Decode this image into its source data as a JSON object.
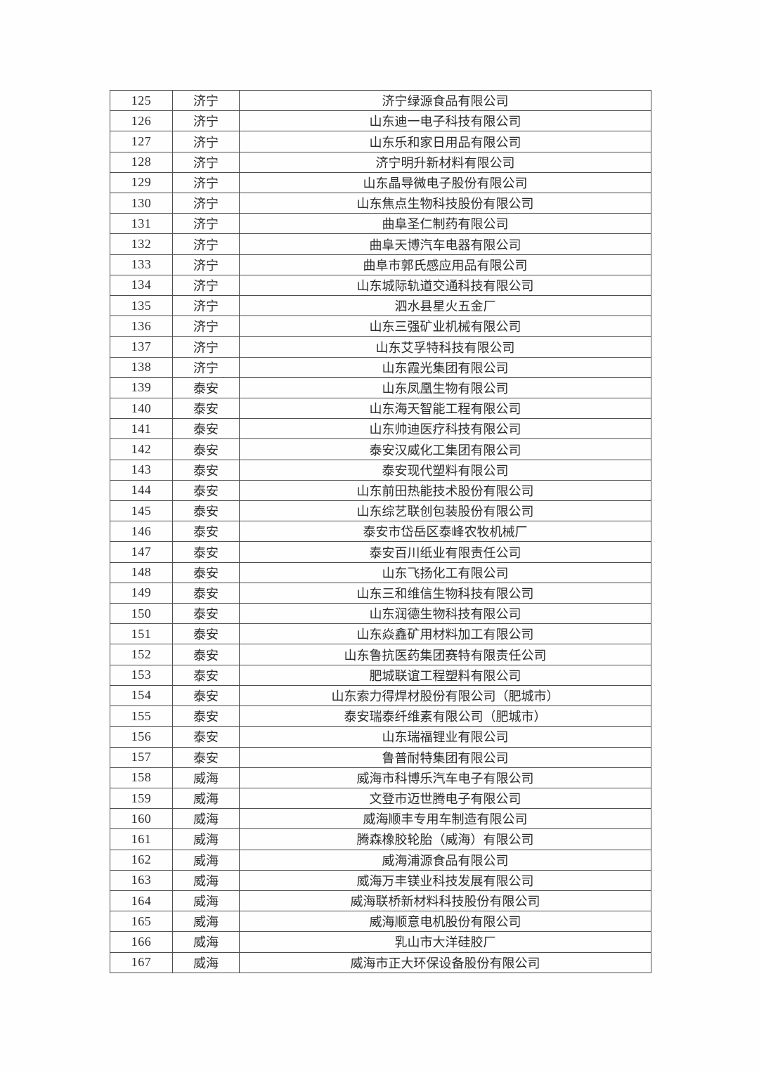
{
  "table": {
    "rows": [
      {
        "index": "125",
        "city": "济宁",
        "company": "济宁绿源食品有限公司"
      },
      {
        "index": "126",
        "city": "济宁",
        "company": "山东迪一电子科技有限公司"
      },
      {
        "index": "127",
        "city": "济宁",
        "company": "山东乐和家日用品有限公司"
      },
      {
        "index": "128",
        "city": "济宁",
        "company": "济宁明升新材料有限公司"
      },
      {
        "index": "129",
        "city": "济宁",
        "company": "山东晶导微电子股份有限公司"
      },
      {
        "index": "130",
        "city": "济宁",
        "company": "山东焦点生物科技股份有限公司"
      },
      {
        "index": "131",
        "city": "济宁",
        "company": "曲阜圣仁制药有限公司"
      },
      {
        "index": "132",
        "city": "济宁",
        "company": "曲阜天博汽车电器有限公司"
      },
      {
        "index": "133",
        "city": "济宁",
        "company": "曲阜市郭氏感应用品有限公司"
      },
      {
        "index": "134",
        "city": "济宁",
        "company": "山东城际轨道交通科技有限公司"
      },
      {
        "index": "135",
        "city": "济宁",
        "company": "泗水县星火五金厂"
      },
      {
        "index": "136",
        "city": "济宁",
        "company": "山东三强矿业机械有限公司"
      },
      {
        "index": "137",
        "city": "济宁",
        "company": "山东艾孚特科技有限公司"
      },
      {
        "index": "138",
        "city": "济宁",
        "company": "山东霞光集团有限公司"
      },
      {
        "index": "139",
        "city": "泰安",
        "company": "山东凤凰生物有限公司"
      },
      {
        "index": "140",
        "city": "泰安",
        "company": "山东海天智能工程有限公司"
      },
      {
        "index": "141",
        "city": "泰安",
        "company": "山东帅迪医疗科技有限公司"
      },
      {
        "index": "142",
        "city": "泰安",
        "company": "泰安汉威化工集团有限公司"
      },
      {
        "index": "143",
        "city": "泰安",
        "company": "泰安现代塑料有限公司"
      },
      {
        "index": "144",
        "city": "泰安",
        "company": "山东前田热能技术股份有限公司"
      },
      {
        "index": "145",
        "city": "泰安",
        "company": "山东综艺联创包装股份有限公司"
      },
      {
        "index": "146",
        "city": "泰安",
        "company": "泰安市岱岳区泰峰农牧机械厂"
      },
      {
        "index": "147",
        "city": "泰安",
        "company": "泰安百川纸业有限责任公司"
      },
      {
        "index": "148",
        "city": "泰安",
        "company": "山东飞扬化工有限公司"
      },
      {
        "index": "149",
        "city": "泰安",
        "company": "山东三和维信生物科技有限公司"
      },
      {
        "index": "150",
        "city": "泰安",
        "company": "山东润德生物科技有限公司"
      },
      {
        "index": "151",
        "city": "泰安",
        "company": "山东焱鑫矿用材料加工有限公司"
      },
      {
        "index": "152",
        "city": "泰安",
        "company": "山东鲁抗医药集团赛特有限责任公司"
      },
      {
        "index": "153",
        "city": "泰安",
        "company": "肥城联谊工程塑料有限公司"
      },
      {
        "index": "154",
        "city": "泰安",
        "company": "山东索力得焊材股份有限公司（肥城市）"
      },
      {
        "index": "155",
        "city": "泰安",
        "company": "泰安瑞泰纤维素有限公司（肥城市）"
      },
      {
        "index": "156",
        "city": "泰安",
        "company": "山东瑞福锂业有限公司"
      },
      {
        "index": "157",
        "city": "泰安",
        "company": "鲁普耐特集团有限公司"
      },
      {
        "index": "158",
        "city": "威海",
        "company": "威海市科博乐汽车电子有限公司"
      },
      {
        "index": "159",
        "city": "威海",
        "company": "文登市迈世腾电子有限公司"
      },
      {
        "index": "160",
        "city": "威海",
        "company": "威海顺丰专用车制造有限公司"
      },
      {
        "index": "161",
        "city": "威海",
        "company": "腾森橡胶轮胎（威海）有限公司"
      },
      {
        "index": "162",
        "city": "威海",
        "company": "威海浦源食品有限公司"
      },
      {
        "index": "163",
        "city": "威海",
        "company": "威海万丰镁业科技发展有限公司"
      },
      {
        "index": "164",
        "city": "威海",
        "company": "威海联桥新材料科技股份有限公司"
      },
      {
        "index": "165",
        "city": "威海",
        "company": "威海顺意电机股份有限公司"
      },
      {
        "index": "166",
        "city": "威海",
        "company": "乳山市大洋硅胶厂"
      },
      {
        "index": "167",
        "city": "威海",
        "company": "威海市正大环保设备股份有限公司"
      }
    ]
  }
}
